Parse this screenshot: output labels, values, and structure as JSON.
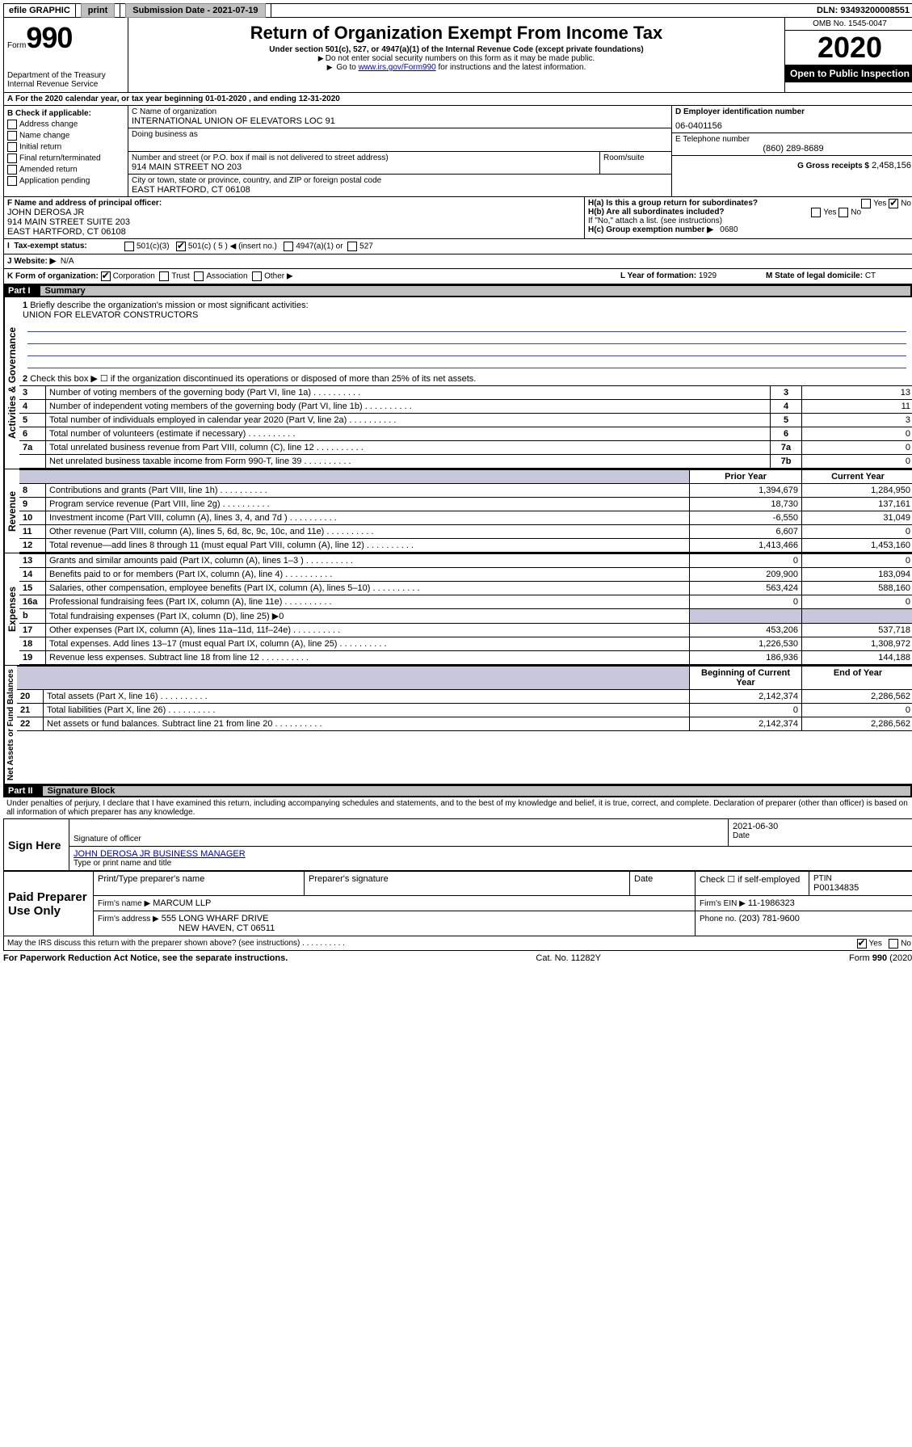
{
  "topbar": {
    "efile": "efile GRAPHIC",
    "print": "print",
    "sub_label": "Submission Date - 2021-07-19",
    "dln": "DLN: 93493200008551"
  },
  "header": {
    "form_word": "Form",
    "form_num": "990",
    "dept1": "Department of the Treasury",
    "dept2": "Internal Revenue Service",
    "title": "Return of Organization Exempt From Income Tax",
    "subtitle": "Under section 501(c), 527, or 4947(a)(1) of the Internal Revenue Code (except private foundations)",
    "note1": "Do not enter social security numbers on this form as it may be made public.",
    "note2_pre": "Go to ",
    "note2_link": "www.irs.gov/Form990",
    "note2_post": " for instructions and the latest information.",
    "omb": "OMB No. 1545-0047",
    "year": "2020",
    "open": "Open to Public Inspection"
  },
  "periodA": {
    "text_pre": "For the 2020 calendar year, or tax year beginning ",
    "begin": "01-01-2020",
    "mid": " , and ending ",
    "end": "12-31-2020"
  },
  "sectionB": {
    "heading": "B Check if applicable:",
    "opts": [
      "Address change",
      "Name change",
      "Initial return",
      "Final return/terminated",
      "Amended return",
      "Application pending"
    ]
  },
  "sectionC": {
    "label_name": "C Name of organization",
    "org_name": "INTERNATIONAL UNION OF ELEVATORS LOC 91",
    "dba_label": "Doing business as",
    "addr_label": "Number and street (or P.O. box if mail is not delivered to street address)",
    "room_label": "Room/suite",
    "addr": "914 MAIN STREET NO 203",
    "city_label": "City or town, state or province, country, and ZIP or foreign postal code",
    "city": "EAST HARTFORD, CT  06108"
  },
  "sectionD": {
    "label": "D Employer identification number",
    "value": "06-0401156"
  },
  "sectionE": {
    "label": "E Telephone number",
    "value": "(860) 289-8689"
  },
  "sectionG": {
    "label": "G Gross receipts $",
    "value": "2,458,156"
  },
  "sectionF": {
    "label": "F Name and address of principal officer:",
    "name": "JOHN DEROSA JR",
    "addr1": "914 MAIN STREET SUITE 203",
    "addr2": "EAST HARTFORD, CT  06108"
  },
  "sectionH": {
    "ha": "H(a)  Is this a group return for subordinates?",
    "hb": "H(b)  Are all subordinates included?",
    "hb_note": "If \"No,\" attach a list. (see instructions)",
    "hc": "H(c)  Group exemption number ▶",
    "hc_val": "0680",
    "yes": "Yes",
    "no": "No"
  },
  "taxexempt": {
    "label": "Tax-exempt status:",
    "o1": "501(c)(3)",
    "o2": "501(c) ( 5 ) ◀ (insert no.)",
    "o3": "4947(a)(1) or",
    "o4": "527"
  },
  "sectionJ": {
    "label": "J   Website: ▶",
    "value": "N/A"
  },
  "sectionK": {
    "label": "K Form of organization:",
    "corp": "Corporation",
    "trust": "Trust",
    "assoc": "Association",
    "other": "Other ▶"
  },
  "sectionL": {
    "label": "L Year of formation:",
    "value": "1929"
  },
  "sectionM": {
    "label": "M State of legal domicile:",
    "value": "CT"
  },
  "part1": {
    "num": "Part I",
    "title": "Summary",
    "q1": "Briefly describe the organization's mission or most significant activities:",
    "q1_ans": "UNION FOR ELEVATOR CONSTRUCTORS",
    "q2": "Check this box ▶ ☐  if the organization discontinued its operations or disposed of more than 25% of its net assets.",
    "rows_top": [
      {
        "n": "3",
        "t": "Number of voting members of the governing body (Part VI, line 1a)",
        "b": "3",
        "v": "13"
      },
      {
        "n": "4",
        "t": "Number of independent voting members of the governing body (Part VI, line 1b)",
        "b": "4",
        "v": "11"
      },
      {
        "n": "5",
        "t": "Total number of individuals employed in calendar year 2020 (Part V, line 2a)",
        "b": "5",
        "v": "3"
      },
      {
        "n": "6",
        "t": "Total number of volunteers (estimate if necessary)",
        "b": "6",
        "v": "0"
      },
      {
        "n": "7a",
        "t": "Total unrelated business revenue from Part VIII, column (C), line 12",
        "b": "7a",
        "v": "0"
      },
      {
        "n": "",
        "t": "Net unrelated business taxable income from Form 990-T, line 39",
        "b": "7b",
        "v": "0"
      }
    ],
    "col_prior": "Prior Year",
    "col_current": "Current Year",
    "rev_rows": [
      {
        "n": "8",
        "t": "Contributions and grants (Part VIII, line 1h)",
        "p": "1,394,679",
        "c": "1,284,950"
      },
      {
        "n": "9",
        "t": "Program service revenue (Part VIII, line 2g)",
        "p": "18,730",
        "c": "137,161"
      },
      {
        "n": "10",
        "t": "Investment income (Part VIII, column (A), lines 3, 4, and 7d )",
        "p": "-6,550",
        "c": "31,049"
      },
      {
        "n": "11",
        "t": "Other revenue (Part VIII, column (A), lines 5, 6d, 8c, 9c, 10c, and 11e)",
        "p": "6,607",
        "c": "0"
      },
      {
        "n": "12",
        "t": "Total revenue—add lines 8 through 11 (must equal Part VIII, column (A), line 12)",
        "p": "1,413,466",
        "c": "1,453,160"
      }
    ],
    "exp_rows": [
      {
        "n": "13",
        "t": "Grants and similar amounts paid (Part IX, column (A), lines 1–3 )",
        "p": "0",
        "c": "0"
      },
      {
        "n": "14",
        "t": "Benefits paid to or for members (Part IX, column (A), line 4)",
        "p": "209,900",
        "c": "183,094"
      },
      {
        "n": "15",
        "t": "Salaries, other compensation, employee benefits (Part IX, column (A), lines 5–10)",
        "p": "563,424",
        "c": "588,160"
      },
      {
        "n": "16a",
        "t": "Professional fundraising fees (Part IX, column (A), line 11e)",
        "p": "0",
        "c": "0"
      },
      {
        "n": "b",
        "t": "Total fundraising expenses (Part IX, column (D), line 25) ▶0",
        "p": "",
        "c": "",
        "shade": true
      },
      {
        "n": "17",
        "t": "Other expenses (Part IX, column (A), lines 11a–11d, 11f–24e)",
        "p": "453,206",
        "c": "537,718"
      },
      {
        "n": "18",
        "t": "Total expenses. Add lines 13–17 (must equal Part IX, column (A), line 25)",
        "p": "1,226,530",
        "c": "1,308,972"
      },
      {
        "n": "19",
        "t": "Revenue less expenses. Subtract line 18 from line 12",
        "p": "186,936",
        "c": "144,188"
      }
    ],
    "col_begin": "Beginning of Current Year",
    "col_end": "End of Year",
    "net_rows": [
      {
        "n": "20",
        "t": "Total assets (Part X, line 16)",
        "p": "2,142,374",
        "c": "2,286,562"
      },
      {
        "n": "21",
        "t": "Total liabilities (Part X, line 26)",
        "p": "0",
        "c": "0"
      },
      {
        "n": "22",
        "t": "Net assets or fund balances. Subtract line 21 from line 20",
        "p": "2,142,374",
        "c": "2,286,562"
      }
    ],
    "vert_gov": "Activities & Governance",
    "vert_rev": "Revenue",
    "vert_exp": "Expenses",
    "vert_net": "Net Assets or Fund Balances"
  },
  "part2": {
    "num": "Part II",
    "title": "Signature Block",
    "decl": "Under penalties of perjury, I declare that I have examined this return, including accompanying schedules and statements, and to the best of my knowledge and belief, it is true, correct, and complete. Declaration of preparer (other than officer) is based on all information of which preparer has any knowledge.",
    "sign_here": "Sign Here",
    "sig_officer": "Signature of officer",
    "date_label": "Date",
    "date_val": "2021-06-30",
    "officer_name": "JOHN DEROSA JR  BUSINESS MANAGER",
    "type_name": "Type or print name and title",
    "paid": "Paid Preparer Use Only",
    "prep_name_h": "Print/Type preparer's name",
    "prep_sig_h": "Preparer's signature",
    "date_h": "Date",
    "check_self": "Check ☐ if self-employed",
    "ptin_h": "PTIN",
    "ptin": "P00134835",
    "firm_name_l": "Firm's name      ▶",
    "firm_name": "MARCUM LLP",
    "firm_ein_l": "Firm's EIN ▶",
    "firm_ein": "11-1986323",
    "firm_addr_l": "Firm's address ▶",
    "firm_addr1": "555 LONG WHARF DRIVE",
    "firm_addr2": "NEW HAVEN, CT  06511",
    "phone_l": "Phone no.",
    "phone": "(203) 781-9600",
    "discuss": "May the IRS discuss this return with the preparer shown above? (see instructions)",
    "yes": "Yes",
    "no": "No"
  },
  "footer": {
    "pra": "For Paperwork Reduction Act Notice, see the separate instructions.",
    "cat": "Cat. No. 11282Y",
    "form": "Form 990 (2020)"
  }
}
